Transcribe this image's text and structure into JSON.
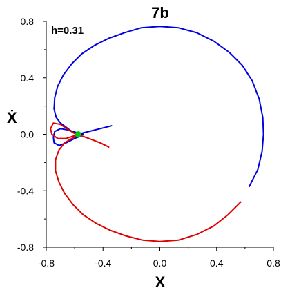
{
  "chart_data": {
    "type": "scatter",
    "title": "7b",
    "annotation": "h=0.31",
    "xlabel": "X",
    "ylabel": "Ẋ",
    "xlim": [
      -0.8,
      0.8
    ],
    "ylim": [
      -0.8,
      0.8
    ],
    "xticks": [
      -0.8,
      -0.4,
      0.0,
      0.4,
      0.8
    ],
    "yticks": [
      -0.8,
      -0.4,
      0.0,
      0.4,
      0.8
    ],
    "xtick_labels": [
      "-0.8",
      "-0.4",
      "0.0",
      "0.4",
      "0.8"
    ],
    "ytick_labels": [
      "-0.8",
      "-0.4",
      "0.0",
      "0.4",
      "0.8"
    ],
    "grid": false,
    "colors": {
      "blue": "#0000e0",
      "red": "#e00000",
      "green": "#00cc00",
      "axis": "#000000"
    },
    "series": [
      {
        "color": "blue",
        "style": "curve",
        "points": [
          [
            -0.59,
            0.0
          ],
          [
            -0.62,
            0.02
          ],
          [
            -0.66,
            0.05
          ],
          [
            -0.7,
            0.08
          ],
          [
            -0.73,
            0.12
          ],
          [
            -0.745,
            0.18
          ],
          [
            -0.74,
            0.26
          ],
          [
            -0.72,
            0.34
          ],
          [
            -0.68,
            0.42
          ],
          [
            -0.62,
            0.5
          ],
          [
            -0.55,
            0.57
          ],
          [
            -0.46,
            0.63
          ],
          [
            -0.36,
            0.68
          ],
          [
            -0.25,
            0.72
          ],
          [
            -0.13,
            0.755
          ],
          [
            0.0,
            0.765
          ],
          [
            0.13,
            0.755
          ],
          [
            0.26,
            0.72
          ],
          [
            0.38,
            0.66
          ],
          [
            0.49,
            0.58
          ],
          [
            0.58,
            0.49
          ],
          [
            0.65,
            0.38
          ],
          [
            0.7,
            0.25
          ],
          [
            0.725,
            0.12
          ],
          [
            0.73,
            0.0
          ],
          [
            0.72,
            -0.12
          ],
          [
            0.69,
            -0.25
          ],
          [
            0.63,
            -0.37
          ]
        ]
      },
      {
        "color": "blue",
        "style": "curve",
        "points": [
          [
            -0.55,
            -0.01
          ],
          [
            -0.6,
            -0.03
          ],
          [
            -0.66,
            -0.06
          ],
          [
            -0.71,
            -0.08
          ],
          [
            -0.745,
            -0.06
          ],
          [
            -0.75,
            -0.02
          ],
          [
            -0.74,
            0.02
          ],
          [
            -0.7,
            0.04
          ],
          [
            -0.64,
            0.03
          ],
          [
            -0.58,
            0.01
          ],
          [
            -0.54,
            0.0
          ]
        ]
      },
      {
        "color": "blue",
        "style": "curve",
        "points": [
          [
            -0.58,
            0.0
          ],
          [
            -0.5,
            0.02
          ],
          [
            -0.42,
            0.04
          ],
          [
            -0.34,
            0.06
          ]
        ]
      },
      {
        "color": "red",
        "style": "curve",
        "points": [
          [
            -0.57,
            0.0
          ],
          [
            -0.62,
            -0.03
          ],
          [
            -0.67,
            -0.06
          ],
          [
            -0.71,
            -0.11
          ],
          [
            -0.735,
            -0.18
          ],
          [
            -0.735,
            -0.26
          ],
          [
            -0.71,
            -0.34
          ],
          [
            -0.67,
            -0.42
          ],
          [
            -0.61,
            -0.5
          ],
          [
            -0.54,
            -0.57
          ],
          [
            -0.45,
            -0.63
          ],
          [
            -0.35,
            -0.68
          ],
          [
            -0.24,
            -0.72
          ],
          [
            -0.12,
            -0.75
          ],
          [
            0.0,
            -0.76
          ],
          [
            0.13,
            -0.75
          ],
          [
            0.26,
            -0.71
          ],
          [
            0.38,
            -0.65
          ],
          [
            0.48,
            -0.57
          ],
          [
            0.57,
            -0.48
          ]
        ]
      },
      {
        "color": "red",
        "style": "curve",
        "points": [
          [
            -0.59,
            0.0
          ],
          [
            -0.64,
            0.03
          ],
          [
            -0.7,
            0.07
          ],
          [
            -0.75,
            0.08
          ],
          [
            -0.77,
            0.04
          ],
          [
            -0.76,
            0.0
          ],
          [
            -0.72,
            -0.03
          ],
          [
            -0.66,
            -0.03
          ],
          [
            -0.6,
            -0.01
          ],
          [
            -0.56,
            0.0
          ]
        ]
      },
      {
        "color": "red",
        "style": "curve",
        "points": [
          [
            -0.58,
            0.0
          ],
          [
            -0.5,
            -0.03
          ],
          [
            -0.42,
            -0.06
          ],
          [
            -0.36,
            -0.09
          ]
        ]
      },
      {
        "color": "green",
        "style": "marker",
        "points": [
          [
            -0.575,
            0.0
          ]
        ]
      }
    ]
  }
}
